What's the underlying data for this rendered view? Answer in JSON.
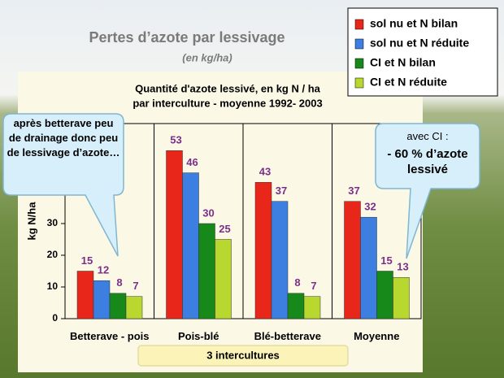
{
  "chart_data": {
    "type": "bar",
    "title": "Pertes d’azote par lessivage",
    "subtitle": "(en kg/ha)",
    "chart_title": [
      "Quantité d'azote lessivé, en kg N / ha",
      "par interculture - moyenne 1992- 2003"
    ],
    "ylabel": "kg N/ha",
    "xlabel": "3 intercultures",
    "categories": [
      "Betterave - pois",
      "Pois-blé",
      "Blé-betterave",
      "Moyenne"
    ],
    "series": [
      {
        "name": "sol nu et N bilan",
        "color": "#e8261a",
        "values": [
          15,
          53,
          43,
          37
        ]
      },
      {
        "name": "sol nu et N réduite",
        "color": "#3d7fe0",
        "values": [
          12,
          46,
          37,
          32
        ]
      },
      {
        "name": "CI et N bilan",
        "color": "#17891a",
        "values": [
          8,
          30,
          8,
          15
        ]
      },
      {
        "name": "CI et N réduite",
        "color": "#b8d830",
        "values": [
          7,
          25,
          7,
          13
        ]
      }
    ],
    "ylim": [
      0,
      60
    ],
    "yticks": [
      0,
      10,
      20,
      30
    ],
    "annotations": [
      "après betterave peu de drainage donc peu de lessivage d’azote…",
      "avec CI :",
      "- 60 % d’azote lessivé"
    ]
  }
}
